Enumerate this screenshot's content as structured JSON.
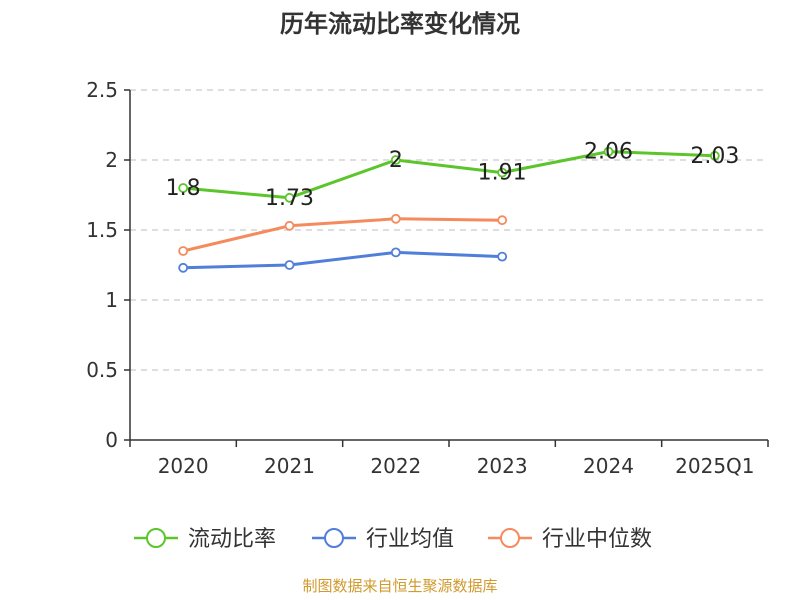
{
  "chart_data": {
    "type": "line",
    "title": "历年流动比率变化情况",
    "categories": [
      "2020",
      "2021",
      "2022",
      "2023",
      "2024",
      "2025Q1"
    ],
    "ylim": [
      0,
      2.5
    ],
    "yticks": [
      "0",
      "0.5",
      "1",
      "1.5",
      "2",
      "2.5"
    ],
    "grid": true,
    "legend_position": "bottom",
    "series": [
      {
        "name": "流动比率",
        "color": "#5cc52b",
        "values": [
          1.8,
          1.73,
          2.0,
          1.91,
          2.06,
          2.03
        ],
        "labels": [
          "1.8",
          "1.73",
          "2",
          "1.91",
          "2.06",
          "2.03"
        ]
      },
      {
        "name": "行业均值",
        "color": "#4f7fd9",
        "values": [
          1.23,
          1.25,
          1.34,
          1.31,
          null,
          null
        ]
      },
      {
        "name": "行业中位数",
        "color": "#f58a5c",
        "values": [
          1.35,
          1.53,
          1.58,
          1.57,
          null,
          null
        ]
      }
    ]
  },
  "footer": {
    "source": "制图数据来自恒生聚源数据库"
  }
}
